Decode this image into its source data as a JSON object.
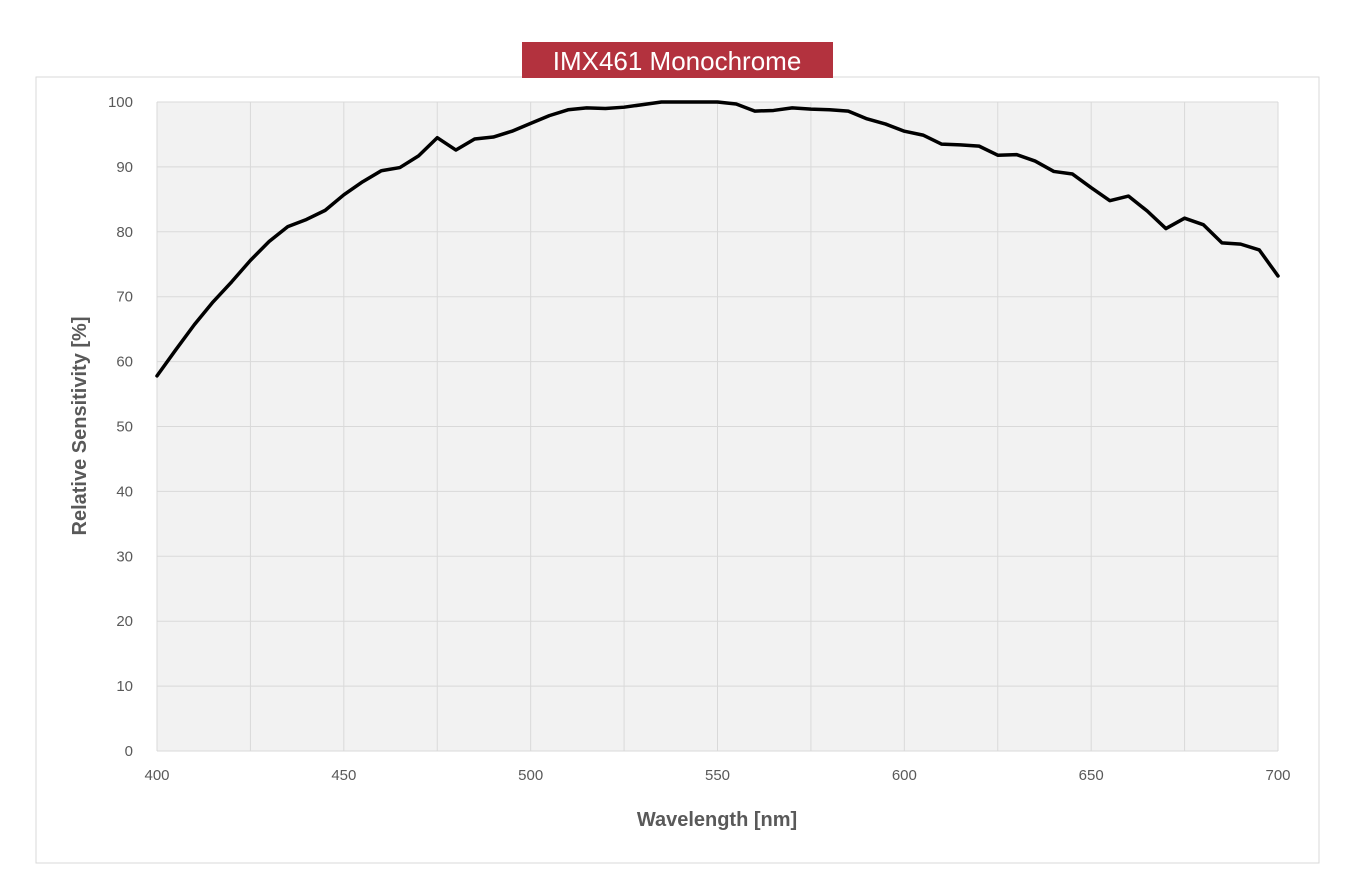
{
  "colors": {
    "title_background": "#b3323e",
    "title_text": "#ffffff",
    "plot_background": "#f2f2f2",
    "gridline": "#d9d9d9",
    "series_line": "#000000",
    "axis_text": "#595959",
    "frame_border": "#d9d9d9"
  },
  "chart_data": {
    "type": "line",
    "title": "IMX461 Monochrome",
    "xlabel": "Wavelength [nm]",
    "ylabel": "Relative Sensitivity [%]",
    "xlim": [
      400,
      700
    ],
    "ylim": [
      0,
      100
    ],
    "x_ticks": [
      400,
      450,
      500,
      550,
      600,
      650,
      700
    ],
    "y_ticks": [
      0,
      10,
      20,
      30,
      40,
      50,
      60,
      70,
      80,
      90,
      100
    ],
    "x_tick_labels": [
      "400",
      "450",
      "500",
      "550",
      "600",
      "650",
      "700"
    ],
    "y_tick_labels": [
      "0",
      "10",
      "20",
      "30",
      "40",
      "50",
      "60",
      "70",
      "80",
      "90",
      "100"
    ],
    "x_grid_step": 25,
    "grid": true,
    "legend": "none",
    "series": [
      {
        "x": [
          400,
          405,
          410,
          415,
          420,
          425,
          430,
          435,
          440,
          445,
          450,
          455,
          460,
          465,
          470,
          475,
          480,
          485,
          490,
          495,
          500,
          505,
          510,
          515,
          520,
          525,
          530,
          535,
          540,
          545,
          550,
          555,
          560,
          565,
          570,
          575,
          580,
          585,
          590,
          595,
          600,
          605,
          610,
          615,
          620,
          625,
          630,
          635,
          640,
          645,
          650,
          655,
          660,
          665,
          670,
          675,
          680,
          685,
          690,
          695,
          700
        ],
        "values": [
          57.8,
          61.8,
          65.7,
          69.2,
          72.3,
          75.6,
          78.5,
          80.8,
          81.9,
          83.3,
          85.7,
          87.7,
          89.4,
          89.9,
          91.7,
          94.5,
          92.6,
          94.3,
          94.6,
          95.5,
          96.7,
          97.9,
          98.8,
          99.1,
          99.0,
          99.2,
          99.6,
          100.0,
          100.0,
          100.0,
          100.0,
          99.7,
          98.6,
          98.7,
          99.1,
          98.9,
          98.8,
          98.6,
          97.4,
          96.6,
          95.5,
          94.9,
          93.5,
          93.4,
          93.2,
          91.8,
          91.9,
          90.9,
          89.3,
          88.9,
          86.8,
          84.8,
          85.5,
          83.2,
          80.5,
          82.1,
          81.1,
          78.3,
          78.1,
          77.2,
          73.2
        ]
      }
    ]
  }
}
